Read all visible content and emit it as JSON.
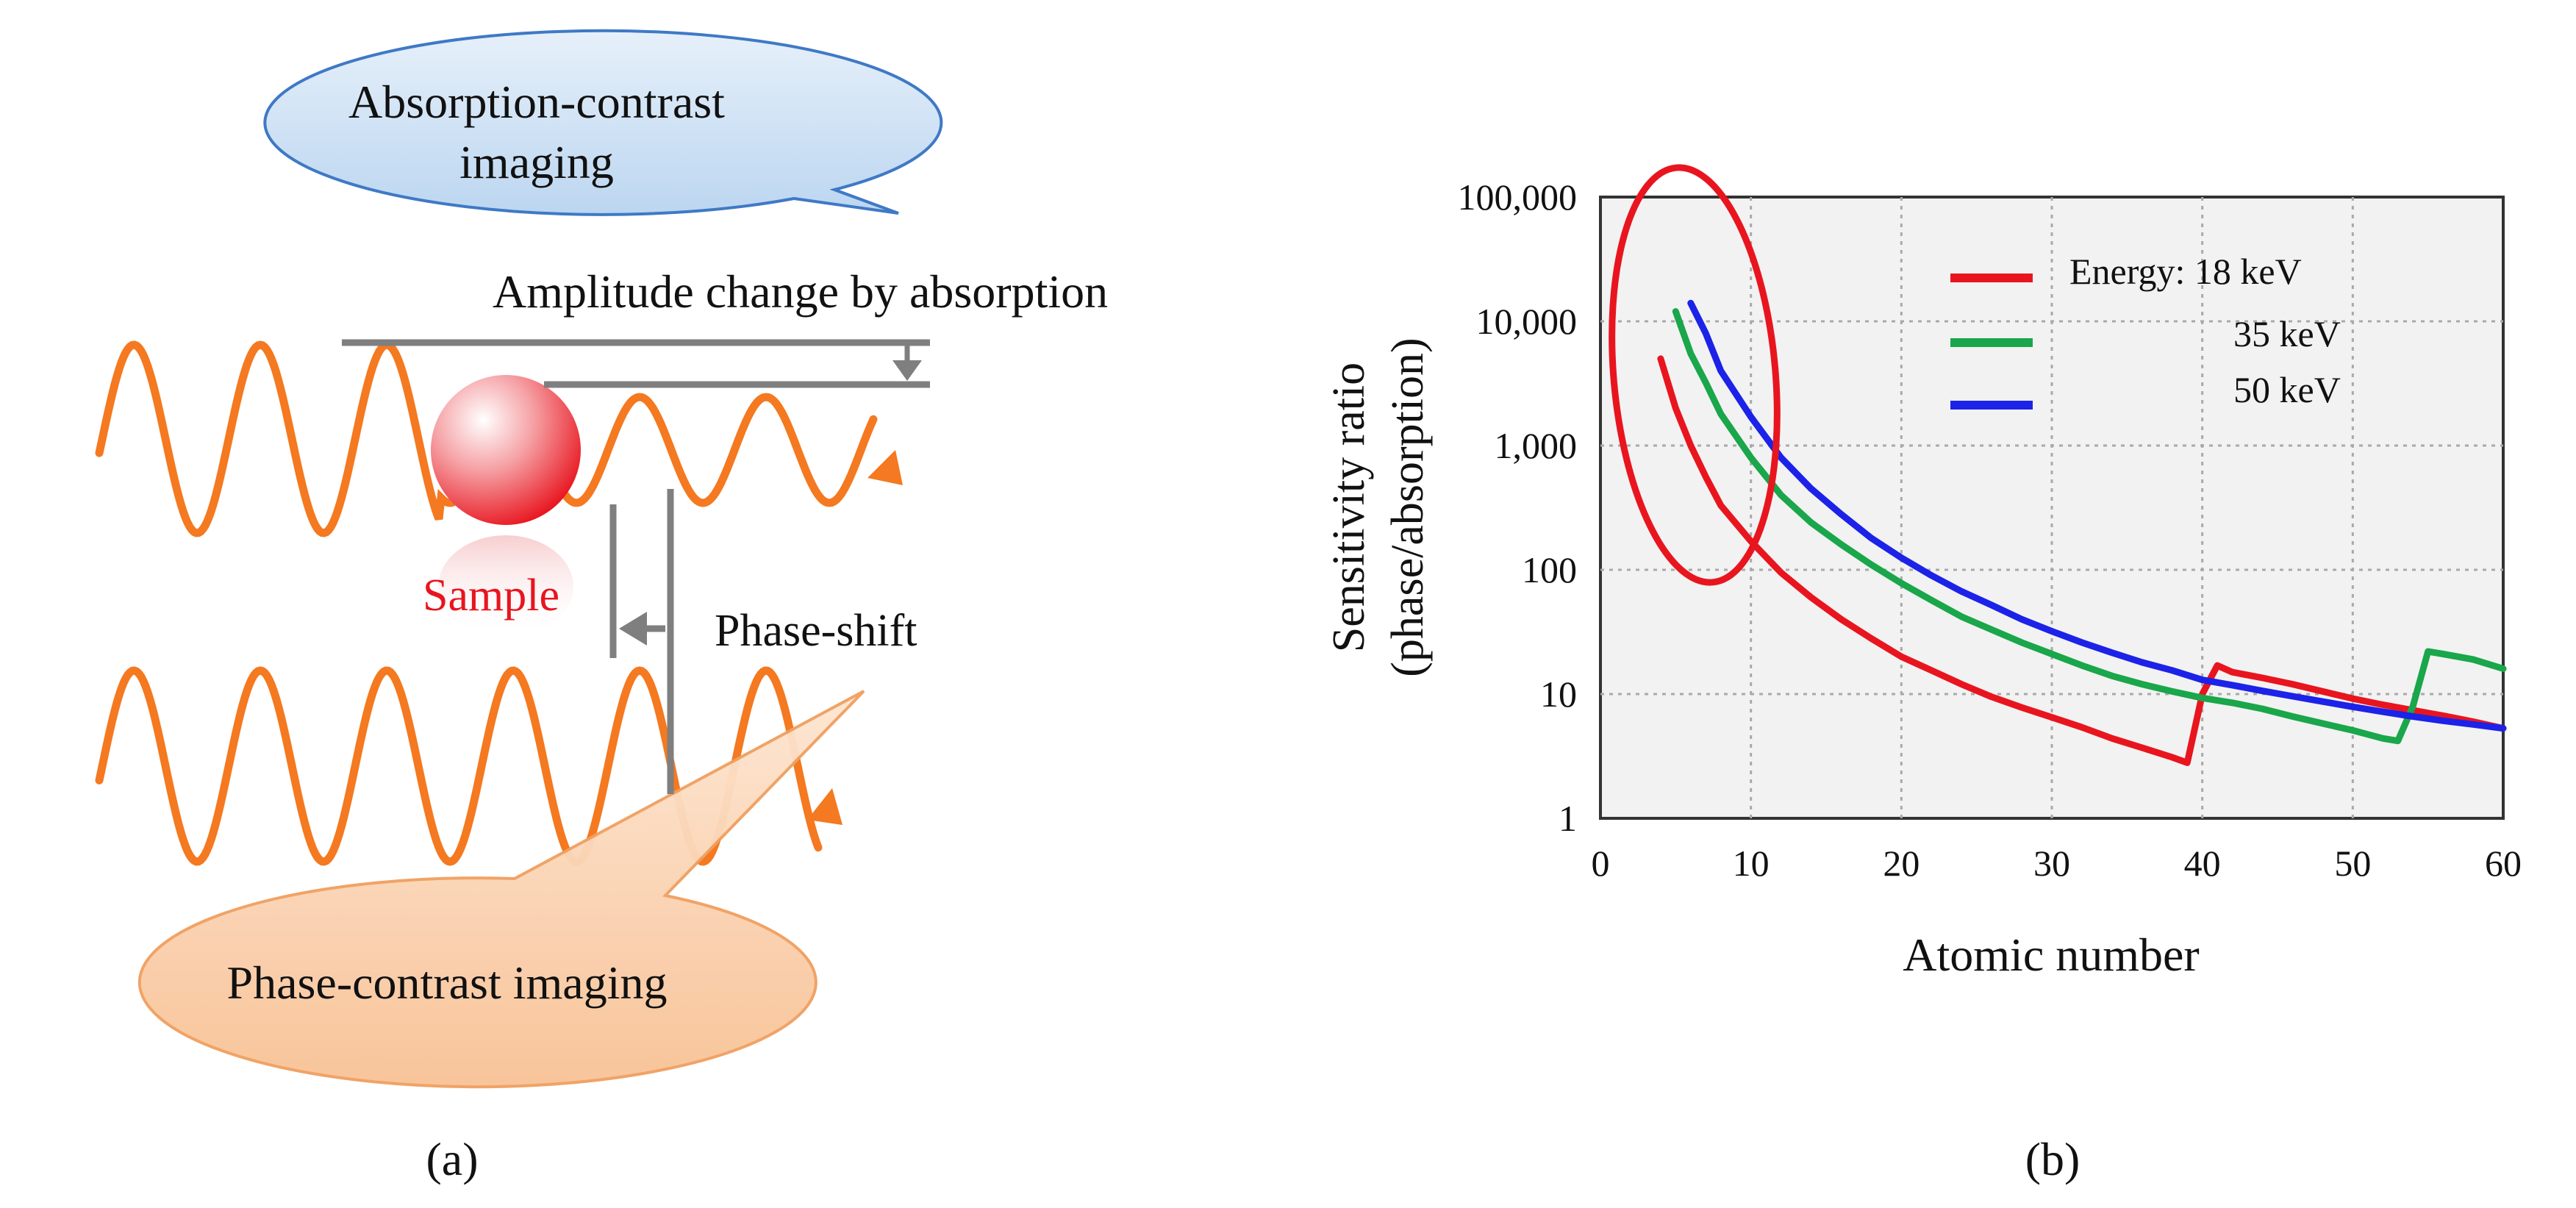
{
  "panel_a": {
    "bubble_top": {
      "line1": "Absorption-contrast",
      "line2": "imaging"
    },
    "bubble_bottom": "Phase-contrast imaging",
    "amplitude_label": "Amplitude change by absorption",
    "sample_label": "Sample",
    "phase_shift_label": "Phase-shift",
    "caption": "(a)",
    "colors": {
      "wave": "#f47920",
      "sample": "#e8151f",
      "bubble_top_fill": "#cfe2f5",
      "bubble_top_stroke": "#3f79c6",
      "bubble_bottom_fill": "#fbd3b0",
      "bubble_bottom_stroke": "#f0a060"
    }
  },
  "panel_b": {
    "caption": "(b)",
    "chart_data": {
      "type": "line",
      "title": "",
      "xlabel": "Atomic number",
      "ylabel_line1": "Sensitivity ratio",
      "ylabel_line2": "(phase/absorption)",
      "xlim": [
        0,
        60
      ],
      "ylim": [
        1,
        100000
      ],
      "yscale": "log",
      "grid": true,
      "x_ticks": [
        "0",
        "10",
        "20",
        "30",
        "40",
        "50",
        "60"
      ],
      "y_ticks": [
        "1",
        "10",
        "100",
        "1,000",
        "10,000",
        "100,000"
      ],
      "legend": {
        "placement": "top-right",
        "entries": [
          "Energy: 18 keV",
          "35 keV",
          "50 keV"
        ]
      },
      "series": [
        {
          "name": "18 keV",
          "color": "#e8151f",
          "points": [
            [
              4,
              5000
            ],
            [
              5,
              2000
            ],
            [
              6,
              1000
            ],
            [
              7,
              560
            ],
            [
              8,
              330
            ],
            [
              10,
              170
            ],
            [
              12,
              95
            ],
            [
              14,
              60
            ],
            [
              16,
              40
            ],
            [
              18,
              28
            ],
            [
              20,
              20
            ],
            [
              22,
              15.5
            ],
            [
              24,
              12
            ],
            [
              26,
              9.5
            ],
            [
              28,
              7.8
            ],
            [
              30,
              6.5
            ],
            [
              32,
              5.4
            ],
            [
              34,
              4.4
            ],
            [
              36,
              3.7
            ],
            [
              38,
              3.1
            ],
            [
              39,
              2.8
            ],
            [
              40,
              10
            ],
            [
              41,
              17
            ],
            [
              42,
              15
            ],
            [
              44,
              13.5
            ],
            [
              46,
              12
            ],
            [
              48,
              10.5
            ],
            [
              50,
              9.2
            ],
            [
              52,
              8.2
            ],
            [
              54,
              7.4
            ],
            [
              56,
              6.7
            ],
            [
              58,
              6
            ],
            [
              60,
              5.3
            ]
          ]
        },
        {
          "name": "35 keV",
          "color": "#1aa64a",
          "points": [
            [
              5,
              12000
            ],
            [
              6,
              5500
            ],
            [
              7,
              3200
            ],
            [
              8,
              1800
            ],
            [
              10,
              800
            ],
            [
              12,
              400
            ],
            [
              14,
              240
            ],
            [
              16,
              160
            ],
            [
              18,
              110
            ],
            [
              20,
              78
            ],
            [
              22,
              57
            ],
            [
              24,
              42
            ],
            [
              26,
              33
            ],
            [
              28,
              26
            ],
            [
              30,
              21
            ],
            [
              32,
              17
            ],
            [
              34,
              14
            ],
            [
              36,
              12
            ],
            [
              38,
              10.5
            ],
            [
              40,
              9.3
            ],
            [
              42,
              8.5
            ],
            [
              44,
              7.6
            ],
            [
              46,
              6.6
            ],
            [
              48,
              5.8
            ],
            [
              50,
              5.1
            ],
            [
              52,
              4.4
            ],
            [
              53,
              4.2
            ],
            [
              54,
              8
            ],
            [
              55,
              22
            ],
            [
              56,
              21
            ],
            [
              58,
              19
            ],
            [
              60,
              16
            ]
          ]
        },
        {
          "name": "50 keV",
          "color": "#1c22e8",
          "points": [
            [
              6,
              14000
            ],
            [
              7,
              8000
            ],
            [
              8,
              4000
            ],
            [
              10,
              1700
            ],
            [
              12,
              800
            ],
            [
              14,
              450
            ],
            [
              16,
              280
            ],
            [
              18,
              180
            ],
            [
              20,
              125
            ],
            [
              22,
              90
            ],
            [
              24,
              67
            ],
            [
              26,
              52
            ],
            [
              28,
              40
            ],
            [
              30,
              32
            ],
            [
              32,
              26
            ],
            [
              34,
              21.5
            ],
            [
              36,
              18
            ],
            [
              38,
              15.5
            ],
            [
              40,
              13
            ],
            [
              42,
              11.8
            ],
            [
              44,
              10.6
            ],
            [
              46,
              9.6
            ],
            [
              48,
              8.7
            ],
            [
              50,
              7.9
            ],
            [
              52,
              7.2
            ],
            [
              54,
              6.6
            ],
            [
              56,
              6.1
            ],
            [
              58,
              5.7
            ],
            [
              60,
              5.3
            ]
          ]
        }
      ]
    }
  }
}
